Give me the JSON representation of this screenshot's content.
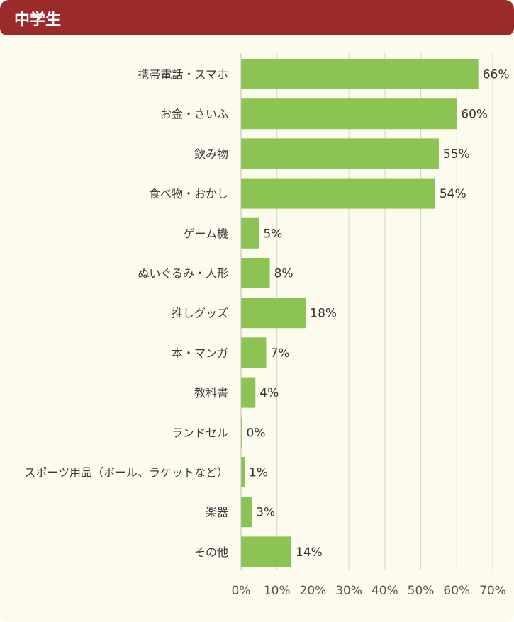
{
  "header": {
    "title": "中学生"
  },
  "colors": {
    "header_bg": "#9b2b2b",
    "bar": "#8bc452",
    "grid": "#d6d6c8",
    "panel_bg": "#fdfbee"
  },
  "chart_data": {
    "type": "bar",
    "orientation": "horizontal",
    "title": "中学生",
    "categories": [
      "携帯電話・スマホ",
      "お金・さいふ",
      "飲み物",
      "食べ物・おかし",
      "ゲーム機",
      "ぬいぐるみ・人形",
      "推しグッズ",
      "本・マンガ",
      "教科書",
      "ランドセル",
      "スポーツ用品（ボール、ラケットなど）",
      "楽器",
      "その他"
    ],
    "values": [
      66,
      60,
      55,
      54,
      5,
      8,
      18,
      7,
      4,
      0,
      1,
      3,
      14
    ],
    "value_labels": [
      "66%",
      "60%",
      "55%",
      "54%",
      "5%",
      "8%",
      "18%",
      "7%",
      "4%",
      "0%",
      "1%",
      "3%",
      "14%"
    ],
    "xlim": [
      0,
      70
    ],
    "xticks": [
      "0%",
      "10%",
      "20%",
      "30%",
      "40%",
      "50%",
      "60%",
      "70%"
    ],
    "grid": true
  }
}
